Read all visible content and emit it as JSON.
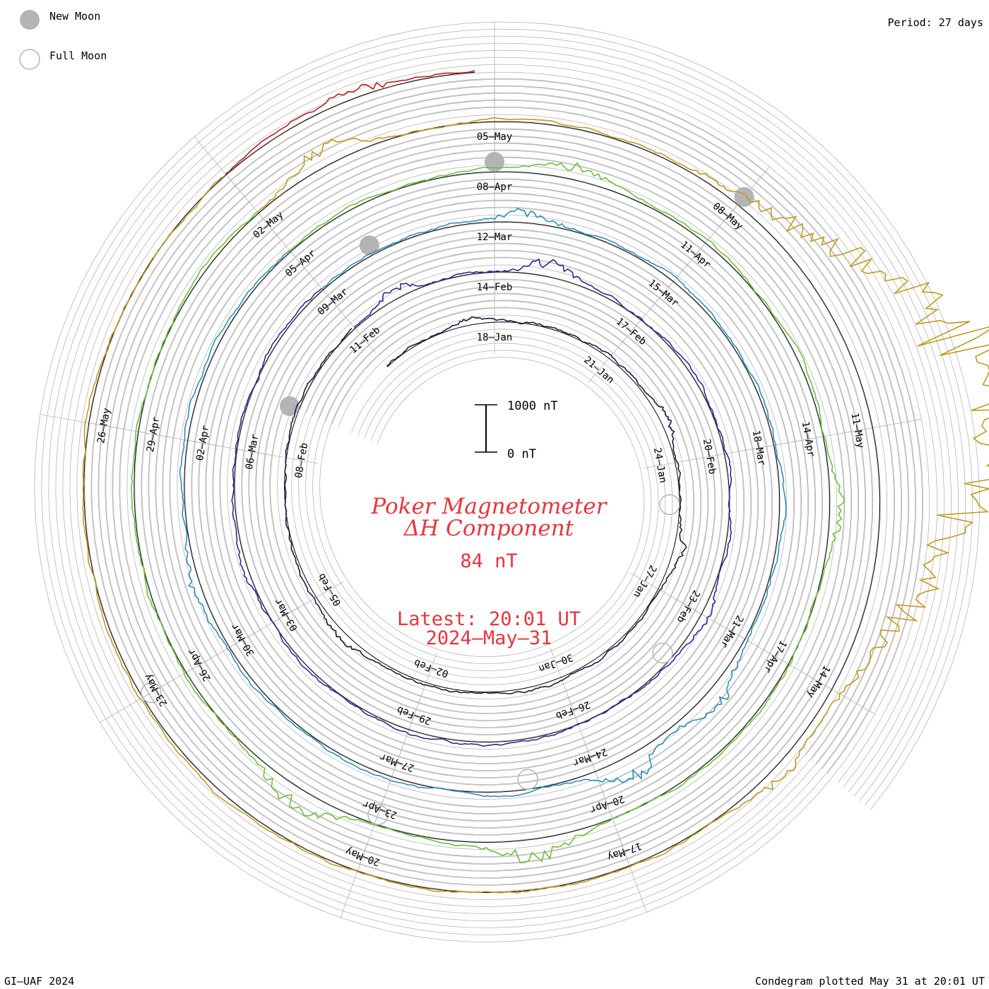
{
  "legend": {
    "new_moon_label": "New Moon",
    "full_moon_label": "Full Moon"
  },
  "period_label": "Period: 27 days",
  "scale": {
    "top_label": "1000 nT",
    "bottom_label": "0 nT"
  },
  "title": {
    "line1": "Poker Magnetometer",
    "line2": "ΔH Component",
    "value": "84 nT",
    "latest_line1": "Latest: 20:01 UT",
    "latest_line2": "2024–May–31"
  },
  "footer": {
    "left": "GI–UAF 2024",
    "right": "Condegram plotted May 31 at 20:01 UT"
  },
  "colors": {
    "title_red": "#e8343c",
    "grid": "#b4b4b4",
    "baseline": "#000000",
    "new_moon": "#b4b4b4",
    "full_moon": "#b4b4b4"
  },
  "chart_data": {
    "type": "line",
    "projection": "spiral condegram",
    "period_days": 27,
    "start_date": "2024-01-15",
    "end_date": "2024-05-31",
    "units": "nT",
    "scale_bar_nT": [
      0,
      1000
    ],
    "current_value_nT": 84,
    "rotations": [
      {
        "start": "2024-01-15",
        "color": "#1a1a44",
        "disturbances": [
          {
            "day": 2.5,
            "nT": 120
          },
          {
            "day": 8,
            "nT": 150
          },
          {
            "day": 11,
            "nT": 200
          },
          {
            "day": 20,
            "nT": 150
          }
        ]
      },
      {
        "start": "2024-02-11",
        "color": "#2a2a9a",
        "disturbances": [
          {
            "day": 1,
            "nT": 250
          },
          {
            "day": 4,
            "nT": 350
          },
          {
            "day": 12,
            "nT": 150
          },
          {
            "day": 22,
            "nT": 100
          }
        ]
      },
      {
        "start": "2024-03-09",
        "color": "#2f8fb8",
        "disturbances": [
          {
            "day": 3.5,
            "nT": 250
          },
          {
            "day": 13,
            "nT": 400
          },
          {
            "day": 14.5,
            "nT": 500
          },
          {
            "day": 22,
            "nT": 200
          }
        ]
      },
      {
        "start": "2024-04-05",
        "color": "#6cbf3c",
        "disturbances": [
          {
            "day": 4,
            "nT": 300
          },
          {
            "day": 10,
            "nT": 250
          },
          {
            "day": 16,
            "nT": 450
          },
          {
            "day": 19,
            "nT": 500
          }
        ]
      },
      {
        "start": "2024-05-02",
        "color": "#c09a1e",
        "disturbances": [
          {
            "day": 1,
            "nT": 400
          },
          {
            "day": 8.5,
            "nT": 2000
          },
          {
            "day": 9.5,
            "nT": 1500
          },
          {
            "day": 13,
            "nT": 300
          }
        ]
      },
      {
        "start": "2024-05-29",
        "color": "#b81e1e",
        "disturbances": [
          {
            "day": 1.5,
            "nT": 250
          }
        ]
      }
    ],
    "new_moons": [
      "2024-02-09",
      "2024-03-10",
      "2024-04-08",
      "2024-05-08"
    ],
    "full_moons": [
      "2024-01-25",
      "2024-02-24",
      "2024-03-25",
      "2024-04-23",
      "2024-05-23"
    ],
    "date_labels": [
      "18–Jan",
      "21–Jan",
      "24–Jan",
      "27–Jan",
      "30–Jan",
      "02–Feb",
      "05–Feb",
      "08–Feb",
      "11–Feb",
      "14–Feb",
      "17–Feb",
      "20–Feb",
      "23–Feb",
      "26–Feb",
      "29–Feb",
      "03–Mar",
      "06–Mar",
      "09–Mar",
      "12–Mar",
      "15–Mar",
      "18–Mar",
      "21–Mar",
      "24–Mar",
      "27–Mar",
      "30–Mar",
      "02–Apr",
      "05–Apr",
      "08–Apr",
      "11–Apr",
      "14–Apr",
      "17–Apr",
      "20–Apr",
      "23–Apr",
      "26–Apr",
      "29–Apr",
      "02–May",
      "05–May",
      "08–May",
      "11–May",
      "14–May",
      "17–May",
      "20–May",
      "23–May",
      "26–May"
    ]
  }
}
